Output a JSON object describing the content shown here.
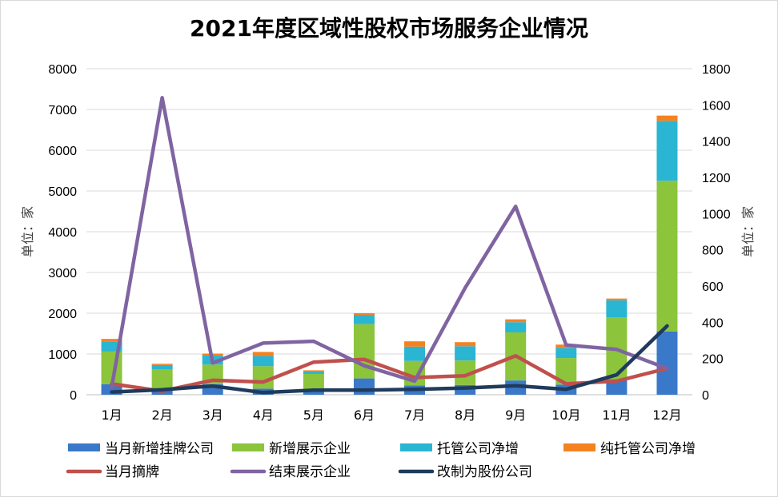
{
  "chart_data": {
    "type": "bar",
    "title": "2021年度区域性股权市场服务企业情况",
    "categories": [
      "1月",
      "2月",
      "3月",
      "4月",
      "5月",
      "6月",
      "7月",
      "8月",
      "9月",
      "10月",
      "11月",
      "12月"
    ],
    "ylabel_left": "单位：家",
    "ylabel_right": "单位：家",
    "ylim_left": [
      0,
      8000
    ],
    "ylim_right": [
      0,
      1800
    ],
    "yticks_left": [
      0,
      1000,
      2000,
      3000,
      4000,
      5000,
      6000,
      7000,
      8000
    ],
    "yticks_right": [
      0,
      200,
      400,
      600,
      800,
      1000,
      1200,
      1400,
      1600,
      1800
    ],
    "grid": true,
    "legend_position": "bottom",
    "bar_series": [
      {
        "name": "当月新增挂牌公司",
        "color": "#3a78c9",
        "values": [
          260,
          100,
          260,
          150,
          130,
          400,
          230,
          240,
          350,
          250,
          380,
          1550
        ]
      },
      {
        "name": "新增展示企业",
        "color": "#8cc43c",
        "values": [
          800,
          520,
          480,
          550,
          380,
          1330,
          600,
          600,
          1180,
          650,
          1520,
          3700
        ]
      },
      {
        "name": "托管公司净增",
        "color": "#2ab5d3",
        "values": [
          250,
          110,
          220,
          250,
          60,
          230,
          350,
          350,
          250,
          250,
          420,
          1470
        ]
      },
      {
        "name": "纯托管公司净增",
        "color": "#f58220",
        "values": [
          60,
          30,
          50,
          100,
          30,
          40,
          130,
          100,
          70,
          80,
          40,
          130
        ]
      }
    ],
    "line_series": [
      {
        "name": "当月摘牌",
        "color": "#c0504d",
        "axis": "right",
        "values": [
          60,
          20,
          80,
          70,
          180,
          195,
          95,
          105,
          215,
          60,
          75,
          145
        ]
      },
      {
        "name": "结束展示企业",
        "color": "#8064a2",
        "axis": "right",
        "values": [
          40,
          1640,
          175,
          285,
          295,
          160,
          75,
          590,
          1040,
          275,
          250,
          145
        ]
      },
      {
        "name": "改制为股份公司",
        "color": "#1f3b5c",
        "axis": "right",
        "values": [
          15,
          28,
          48,
          12,
          25,
          25,
          30,
          37,
          50,
          30,
          110,
          380
        ]
      }
    ]
  }
}
